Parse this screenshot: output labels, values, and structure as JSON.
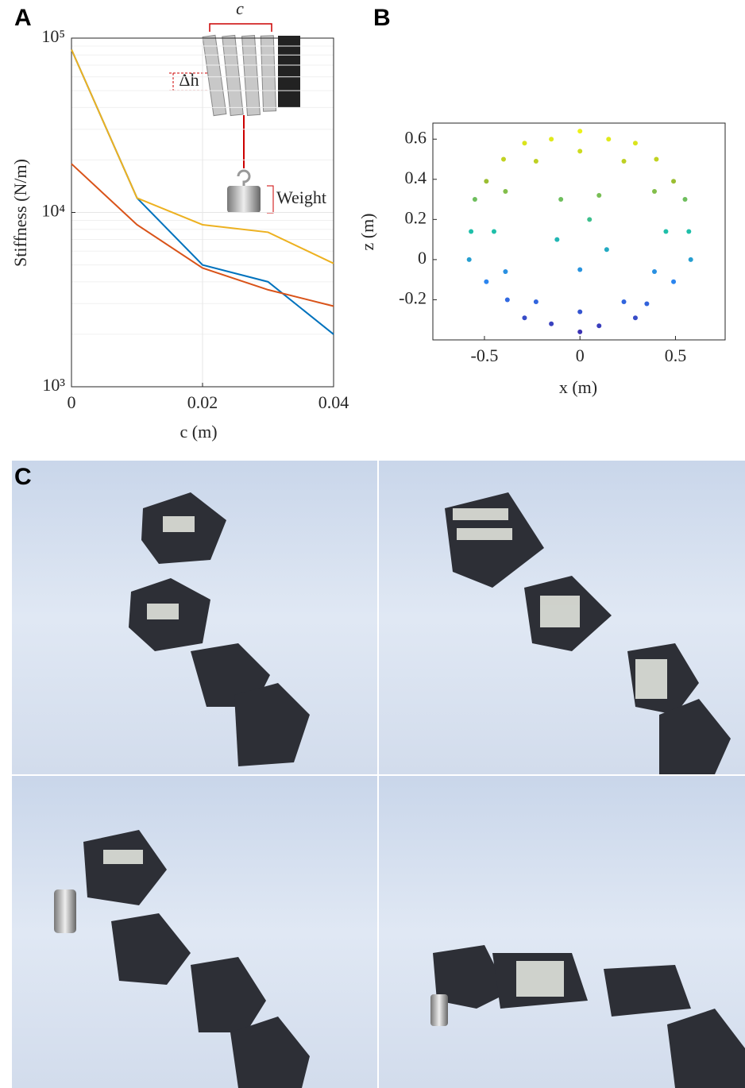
{
  "chart_data": [
    {
      "type": "line",
      "panel_label": "A",
      "ylabel": "Stiffness (N/m)",
      "xlabel": "c (m)",
      "annotations": [
        "c",
        "Δh",
        "Weight"
      ],
      "x": [
        0,
        0.01,
        0.02,
        0.03,
        0.04
      ],
      "series": [
        {
          "color": "#0072bd",
          "values": [
            86000,
            12100,
            5000,
            4000,
            2000
          ]
        },
        {
          "color": "#d95319",
          "values": [
            19000,
            8500,
            4800,
            3600,
            2900
          ]
        },
        {
          "color": "#edb120",
          "values": [
            86000,
            12100,
            8500,
            7700,
            5100
          ]
        }
      ],
      "xlim": [
        0,
        0.04
      ],
      "xticks": [
        0,
        0.02,
        0.04
      ],
      "ylim": [
        1000,
        100000
      ],
      "log_y": true,
      "yticks": [
        {
          "value": 1000,
          "label": "10³"
        },
        {
          "value": 10000,
          "label": "10⁴"
        },
        {
          "value": 100000,
          "label": "10⁵"
        }
      ],
      "grid": true,
      "minor_grid": true
    },
    {
      "type": "scatter",
      "panel_label": "B",
      "xlabel": "x (m)",
      "ylabel": "z (m)",
      "colormap": [
        "#3e26a8",
        "#2c80f5",
        "#1fbfa9",
        "#a5be29",
        "#f9fb15"
      ],
      "x": [
        0.57,
        0.49,
        0.29,
        0,
        -0.29,
        -0.49,
        -0.57,
        -0.49,
        -0.29,
        0,
        0.29,
        0.49,
        0.45,
        0.39,
        0.23,
        0,
        -0.23,
        -0.39,
        -0.45,
        -0.39,
        -0.23,
        0,
        0.23,
        0.39,
        0.15,
        -0.15,
        0.4,
        -0.4,
        0.1,
        -0.1,
        0.05,
        -0.12,
        0.14,
        0,
        0.55,
        -0.55,
        0.58,
        -0.58,
        0.1,
        -0.15,
        0.35,
        -0.38
      ],
      "y": [
        0.14,
        0.39,
        0.58,
        0.64,
        0.58,
        0.39,
        0.14,
        -0.11,
        -0.29,
        -0.36,
        -0.29,
        -0.11,
        0.14,
        0.34,
        0.49,
        0.54,
        0.49,
        0.34,
        0.14,
        -0.06,
        -0.21,
        -0.26,
        -0.21,
        -0.06,
        0.6,
        0.6,
        0.5,
        0.5,
        0.32,
        0.3,
        0.2,
        0.1,
        0.05,
        -0.05,
        0.3,
        0.3,
        0,
        0,
        -0.33,
        -0.32,
        -0.22,
        -0.2
      ],
      "xlim": [
        -0.77,
        0.76
      ],
      "xticks": [
        -0.5,
        0,
        0.5
      ],
      "ylim": [
        -0.4,
        0.68
      ],
      "yticks": [
        -0.2,
        0,
        0.2,
        0.4,
        0.6
      ]
    }
  ],
  "figure_c": {
    "label": "C"
  }
}
